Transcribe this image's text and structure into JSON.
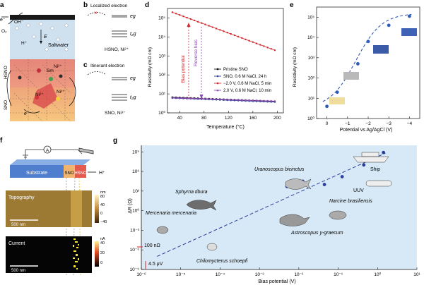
{
  "panel_letters": {
    "a": "a",
    "b": "b",
    "c": "c",
    "d": "d",
    "e": "e",
    "f": "f",
    "g": "g"
  },
  "panel_a": {
    "e_minus_top": "e⁻",
    "oh_minus": "OH⁻",
    "o2": "O₂",
    "h_plus": "H⁺",
    "e_field": "E",
    "saltwater": "Saltwater",
    "hsno": "HSNO",
    "sno": "SNO",
    "sm": "Sm",
    "ni2": "Ni²⁺",
    "ni3": "Ni³⁺",
    "e_minus_bottom": "e⁻",
    "o_label": "O"
  },
  "panel_b": {
    "title": "Localized electron",
    "eg": "eɡ",
    "t2g": "t₂ɡ",
    "caption": "HSNO, Ni²⁺"
  },
  "panel_c": {
    "title": "Itinerant electron",
    "eg": "eɡ",
    "t2g": "t₂ɡ",
    "caption": "SNO, Ni³⁺"
  },
  "colors": {
    "saltwater": "#cfe0ee",
    "hsno": "#e79a86",
    "sno": "#f2b57a",
    "panel_g_bg": "#d7e9f6",
    "series_red": "#d1262b",
    "series_blue": "#2b3f9a",
    "series_black": "#111111",
    "series_purple": "#8a46b4",
    "fit_dashed": "#2f5bb8"
  },
  "chart_d": {
    "type": "line",
    "xlabel": "Temperature (°C)",
    "ylabel": "Resistivity (mΩ cm)",
    "xlim": [
      20,
      210
    ],
    "ylim_log10": [
      0,
      5.5
    ],
    "xticks": [
      40,
      80,
      120,
      160,
      200
    ],
    "yticks": [
      "10⁰",
      "10¹",
      "10²",
      "10³",
      "10⁴",
      "10⁵"
    ],
    "annotation_bias": "Bias potential",
    "annotation_reverse": "Reverse bias",
    "series": [
      {
        "name": "Pristine SNO",
        "color_key": "series_black",
        "marker": "square",
        "log10_start": 0.82,
        "log10_end": 0.6
      },
      {
        "name": "SNO, 0.6 M NaCl, 24 h",
        "color_key": "series_blue",
        "marker": "circle",
        "log10_start": 0.78,
        "log10_end": 0.57
      },
      {
        "name": "−2.0 V, 0.6 M NaCl, 5 min",
        "color_key": "series_red",
        "marker": "circle",
        "log10_start": 5.3,
        "log10_end": 3.3
      },
      {
        "name": "2.0 V, 0.6 M NaCl, 10 min",
        "color_key": "series_purple",
        "marker": "triangle",
        "log10_start": 0.8,
        "log10_end": 0.62
      }
    ]
  },
  "chart_e": {
    "type": "scatter",
    "xlabel": "Potential vs Ag/AgCl (V)",
    "ylabel": "Resistivity (mΩ cm)",
    "xticks": [
      "0",
      "−1",
      "−2",
      "−3",
      "−4"
    ],
    "yticks": [
      "10⁰",
      "10¹",
      "10²",
      "10³",
      "10⁴",
      "10⁵"
    ],
    "xlim": [
      0.5,
      -4.5
    ],
    "ylim_log10": [
      0,
      5.5
    ],
    "points": [
      {
        "x": 0,
        "log10_y": 0.6
      },
      {
        "x": -0.5,
        "log10_y": 1.3
      },
      {
        "x": -1.0,
        "log10_y": 2.0
      },
      {
        "x": -1.5,
        "log10_y": 2.7
      },
      {
        "x": -2.0,
        "log10_y": 3.8
      },
      {
        "x": -3.0,
        "log10_y": 4.6
      },
      {
        "x": -4.0,
        "log10_y": 5.05
      }
    ]
  },
  "panel_f": {
    "substrate": "Substrate",
    "sno": "SNO",
    "hsno": "HSNO",
    "h_plus": "H⁺",
    "ammeter": "A",
    "topography": "Topography",
    "current": "Current",
    "scale_top": "500 nm",
    "scale_bottom": "500 nm",
    "unit_top": "nm",
    "ticks_top": [
      "80",
      "40",
      "0",
      "−40"
    ],
    "unit_bottom": "nA",
    "ticks_bottom": [
      "40",
      "20",
      "0"
    ]
  },
  "chart_g": {
    "type": "scatter",
    "xlabel": "Bias potential (V)",
    "ylabel": "ΔR (Ω)",
    "xticks": [
      "10⁻⁶",
      "10⁻⁵",
      "10⁻⁴",
      "10⁻³",
      "10⁻²",
      "10⁻¹",
      "10⁰",
      "10¹"
    ],
    "yticks": [
      "10⁻⁹",
      "10⁻⁶",
      "10⁻³",
      "10⁰",
      "10³",
      "10⁶",
      "10⁹"
    ],
    "xlim_log10": [
      -6,
      1
    ],
    "ylim_log10": [
      -9,
      10
    ],
    "label_100n": "100 nΩ",
    "label_45uv": "4.5 μV",
    "species": [
      {
        "name": "Uranoscopus bicinctus",
        "italic": true
      },
      {
        "name": "Sphyrna tibura",
        "italic": true
      },
      {
        "name": "Mercenaria mercenaria",
        "italic": true
      },
      {
        "name": "Chilomycterus schoepfi",
        "italic": true
      },
      {
        "name": "Narcine brasiliensis",
        "italic": true
      },
      {
        "name": "Astroscopus y-graecum",
        "italic": true
      },
      {
        "name": "Ship",
        "italic": false
      },
      {
        "name": "UUV",
        "italic": false
      }
    ],
    "points": [
      {
        "log10_x": -2.3,
        "log10_y": 3.7
      },
      {
        "log10_x": -1.9,
        "log10_y": 4.5
      },
      {
        "log10_x": -1.35,
        "log10_y": 4.0
      },
      {
        "log10_x": -0.9,
        "log10_y": 5.2
      },
      {
        "log10_x": -0.35,
        "log10_y": 7.0
      },
      {
        "log10_x": -0.15,
        "log10_y": 7.8
      },
      {
        "log10_x": 0.15,
        "log10_y": 8.9
      }
    ]
  }
}
